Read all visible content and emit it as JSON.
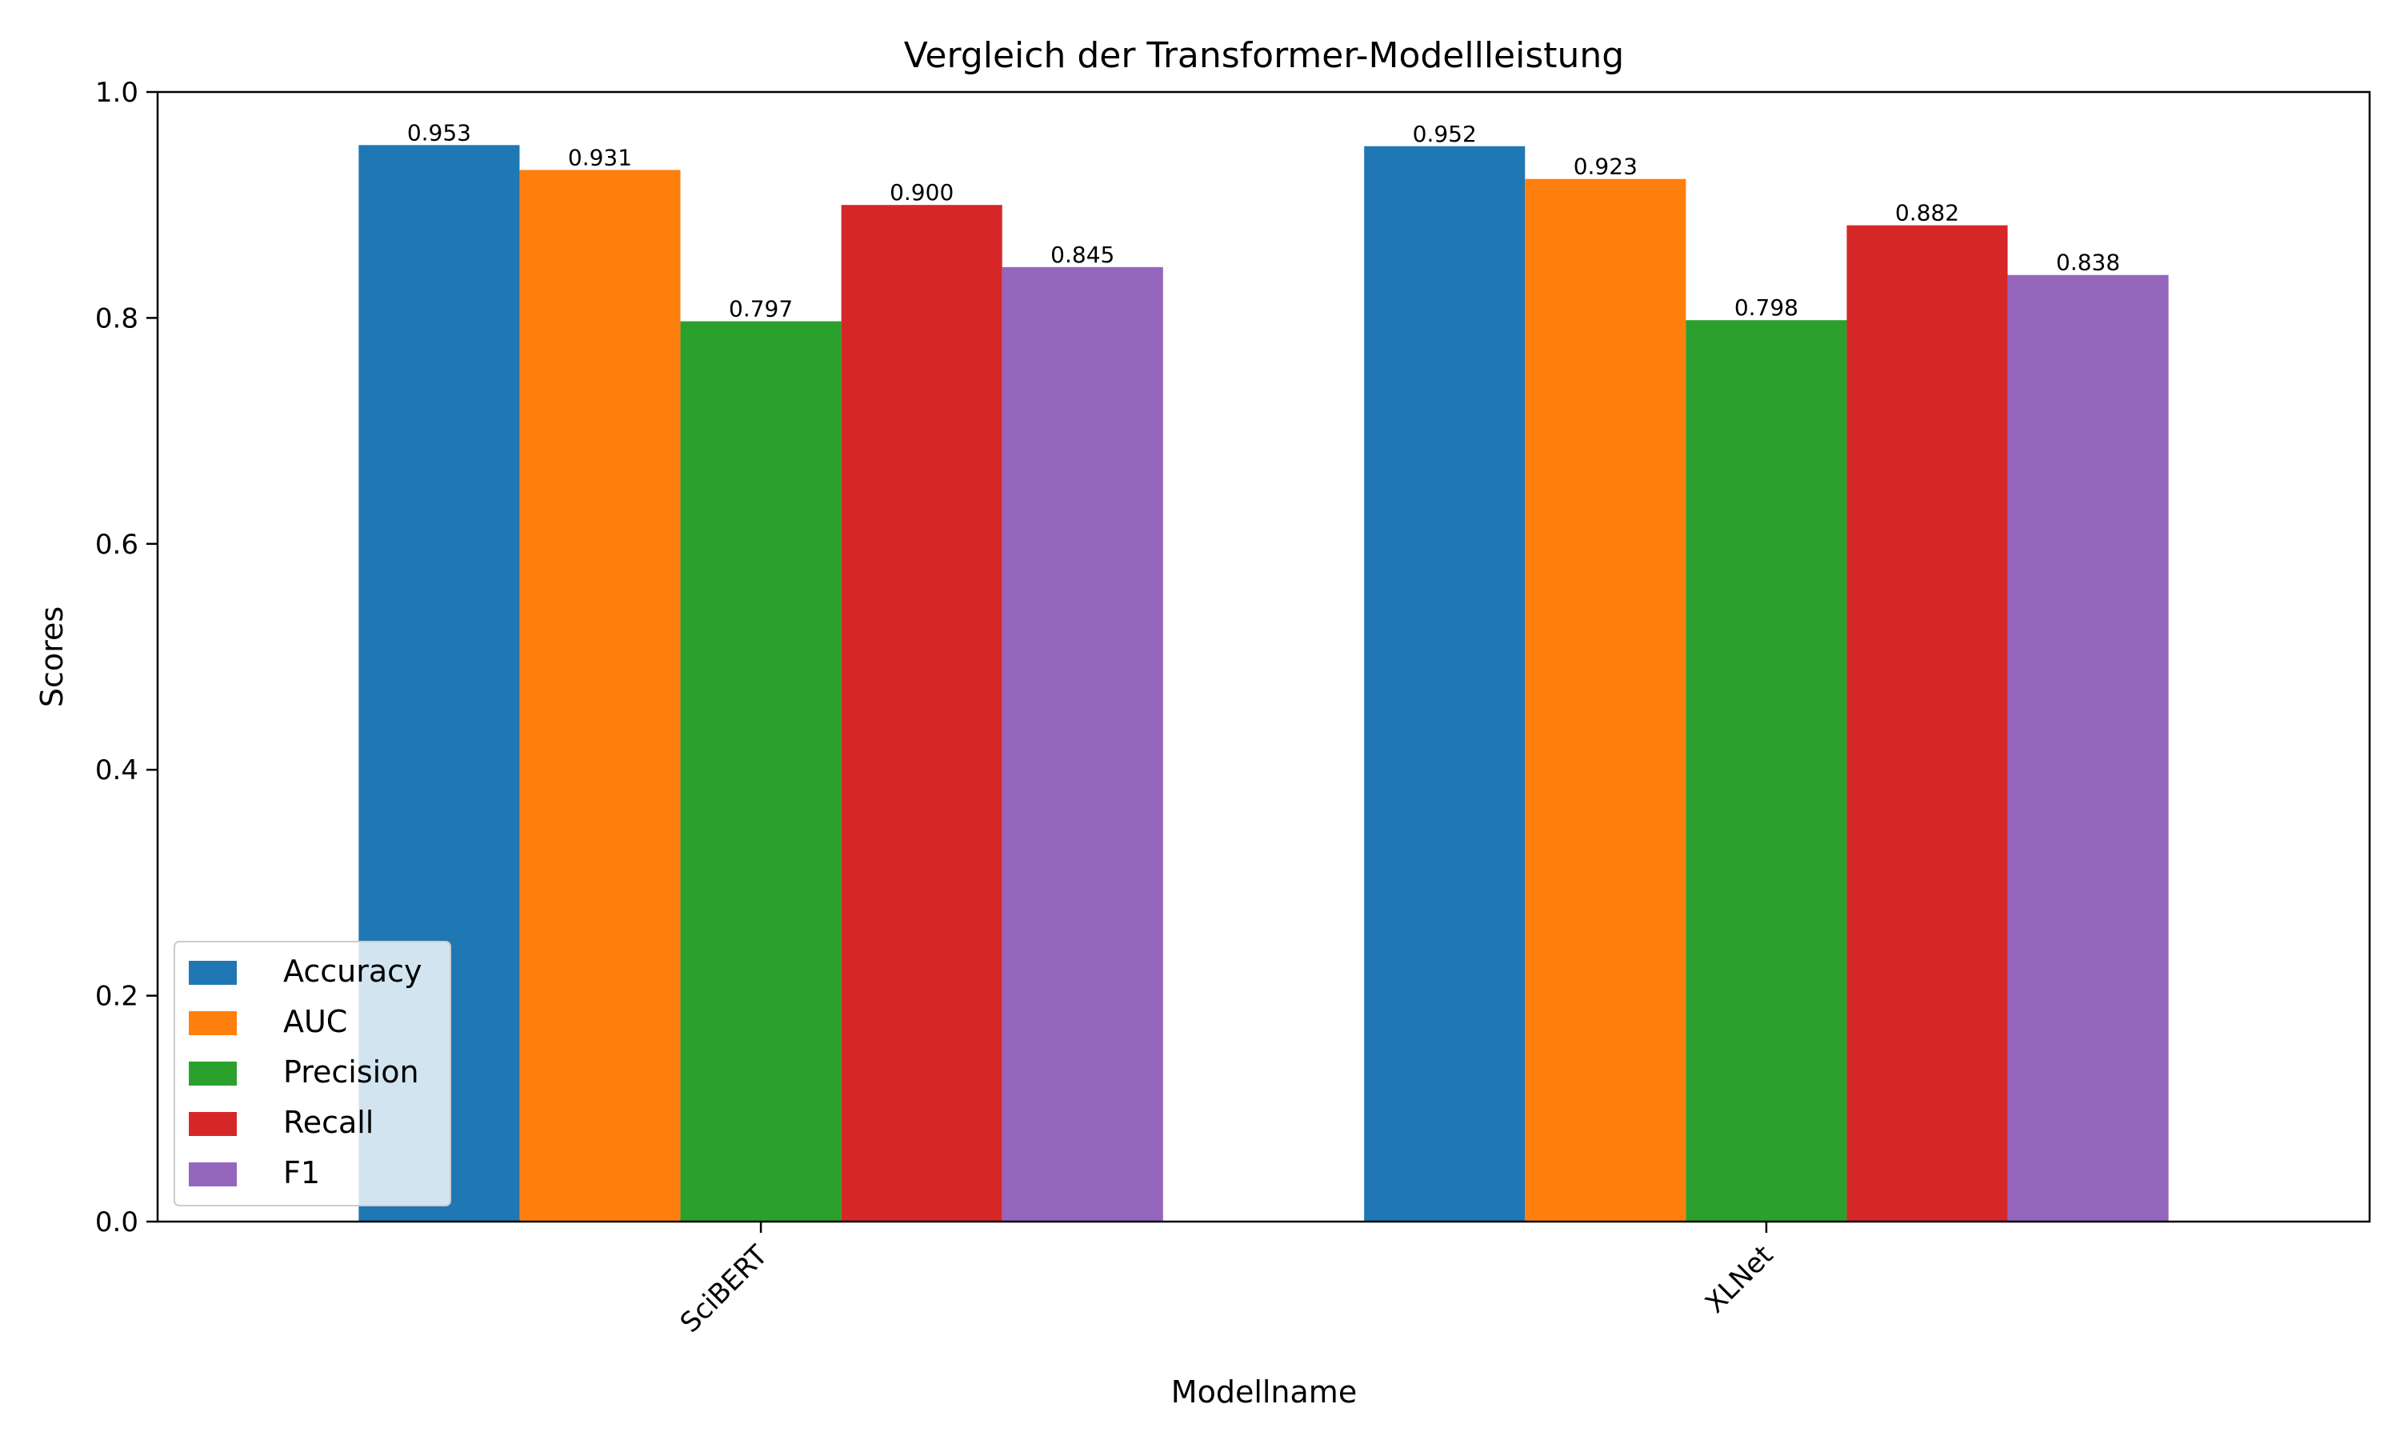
{
  "chart_data": {
    "type": "bar",
    "title": "Vergleich der Transformer-Modellleistung",
    "xlabel": "Modellname",
    "ylabel": "Scores",
    "ylim": [
      0,
      1.0
    ],
    "yticks": [
      "0.0",
      "0.2",
      "0.4",
      "0.6",
      "0.8",
      "1.0"
    ],
    "categories": [
      "SciBERT",
      "XLNet"
    ],
    "series": [
      {
        "name": "Accuracy",
        "color": "#1f77b4",
        "values": [
          0.953,
          0.952
        ],
        "labels": [
          "0.953",
          "0.952"
        ]
      },
      {
        "name": "AUC",
        "color": "#ff7f0e",
        "values": [
          0.931,
          0.923
        ],
        "labels": [
          "0.931",
          "0.923"
        ]
      },
      {
        "name": "Precision",
        "color": "#2ca02c",
        "values": [
          0.797,
          0.798
        ],
        "labels": [
          "0.797",
          "0.798"
        ]
      },
      {
        "name": "Recall",
        "color": "#d62728",
        "values": [
          0.9,
          0.882
        ],
        "labels": [
          "0.900",
          "0.882"
        ]
      },
      {
        "name": "F1",
        "color": "#9467bd",
        "values": [
          0.845,
          0.838
        ],
        "labels": [
          "0.845",
          "0.838"
        ]
      }
    ],
    "legend": "lower-left",
    "grid": false
  }
}
